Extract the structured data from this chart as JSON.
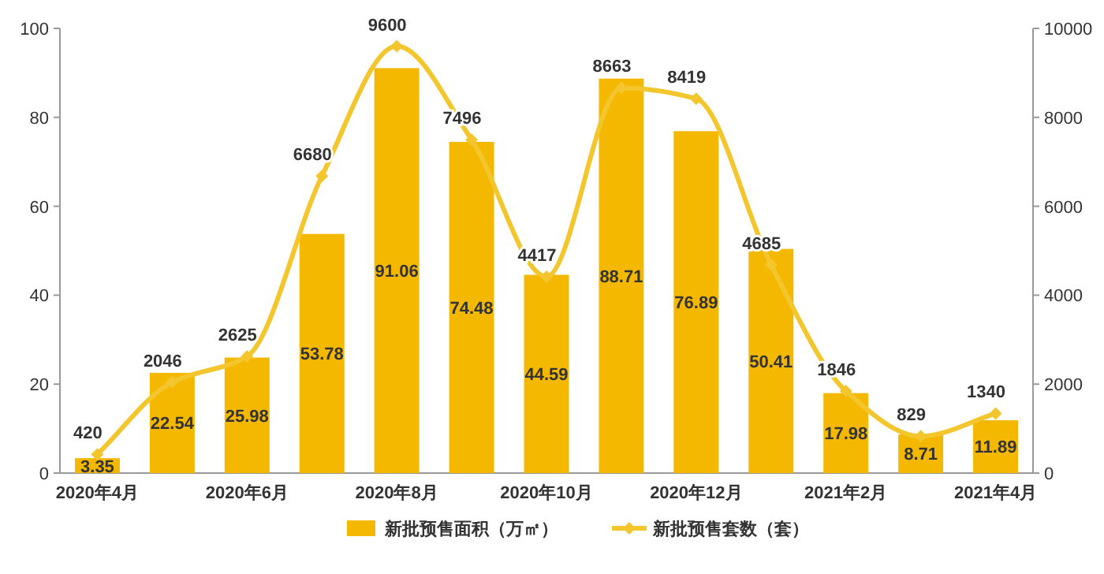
{
  "chart_data": {
    "type": "bar",
    "categories": [
      "2020年4月",
      null,
      "2020年6月",
      null,
      "2020年8月",
      null,
      "2020年10月",
      null,
      "2020年12月",
      null,
      "2021年2月",
      null,
      "2021年4月"
    ],
    "series": [
      {
        "name": "新批预售面积（万㎡）",
        "color": "#f5b800",
        "values": [
          3.35,
          22.54,
          25.98,
          53.78,
          91.06,
          74.48,
          44.59,
          88.71,
          76.89,
          50.41,
          17.98,
          8.71,
          11.89
        ]
      },
      {
        "name": "新批预售套数（套）",
        "type": "line",
        "axis": "y2",
        "color": "#f2c62c",
        "values": [
          420,
          2046,
          2625,
          6680,
          9600,
          7496,
          4417,
          8663,
          8419,
          4685,
          1846,
          829,
          1340
        ]
      }
    ],
    "ylim": [
      0,
      100
    ],
    "yticks": [
      0,
      20,
      40,
      60,
      80,
      100
    ],
    "y2lim": [
      0,
      10000
    ],
    "y2ticks": [
      0,
      2000,
      4000,
      6000,
      8000,
      10000
    ],
    "data_labels": true,
    "legend": "bottom",
    "marker": "diamond",
    "grid": false
  }
}
